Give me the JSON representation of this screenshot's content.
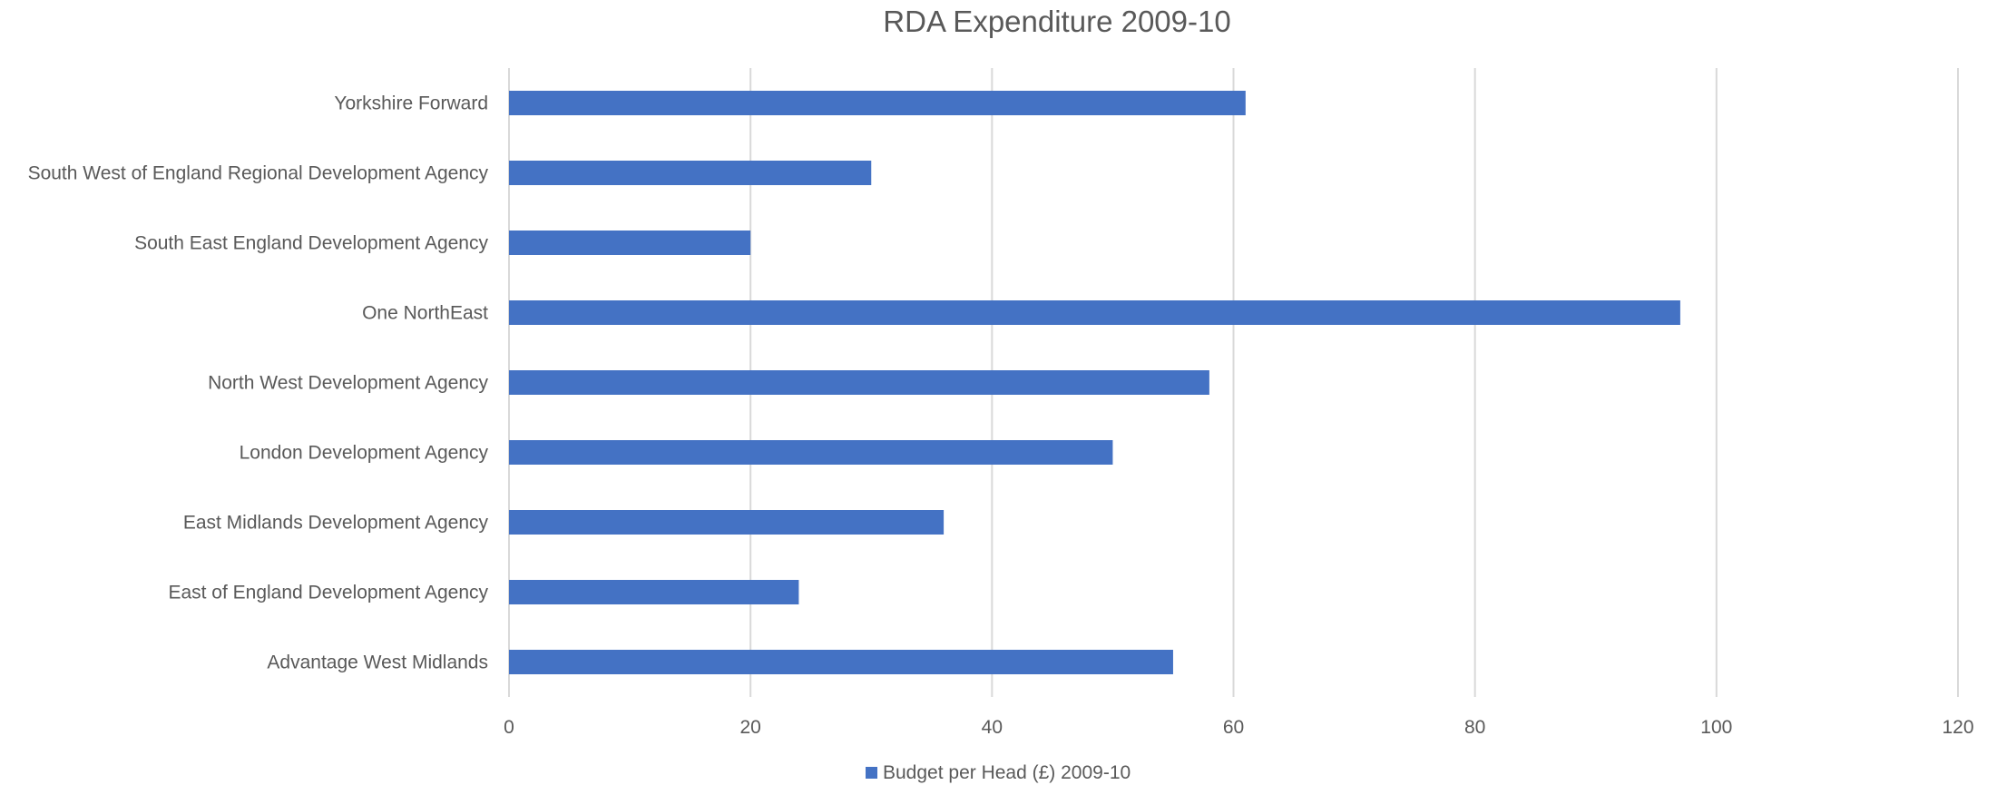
{
  "chart_data": {
    "type": "bar",
    "orientation": "horizontal",
    "title": "RDA Expenditure 2009-10",
    "categories": [
      "Advantage West Midlands",
      "East of England Development Agency",
      "East Midlands Development Agency",
      "London Development Agency",
      "North West Development Agency",
      "One NorthEast",
      "South East England Development Agency",
      "South West of England Regional Development Agency",
      "Yorkshire Forward"
    ],
    "series": [
      {
        "name": "Budget per Head (£) 2009-10",
        "values": [
          55,
          24,
          36,
          50,
          58,
          97,
          20,
          30,
          61
        ],
        "color": "#4472C4"
      }
    ],
    "xlim": [
      0,
      120
    ],
    "xticks": [
      0,
      20,
      40,
      60,
      80,
      100,
      120
    ],
    "xlabel": "",
    "ylabel": "",
    "grid": true,
    "legend_position": "bottom"
  }
}
